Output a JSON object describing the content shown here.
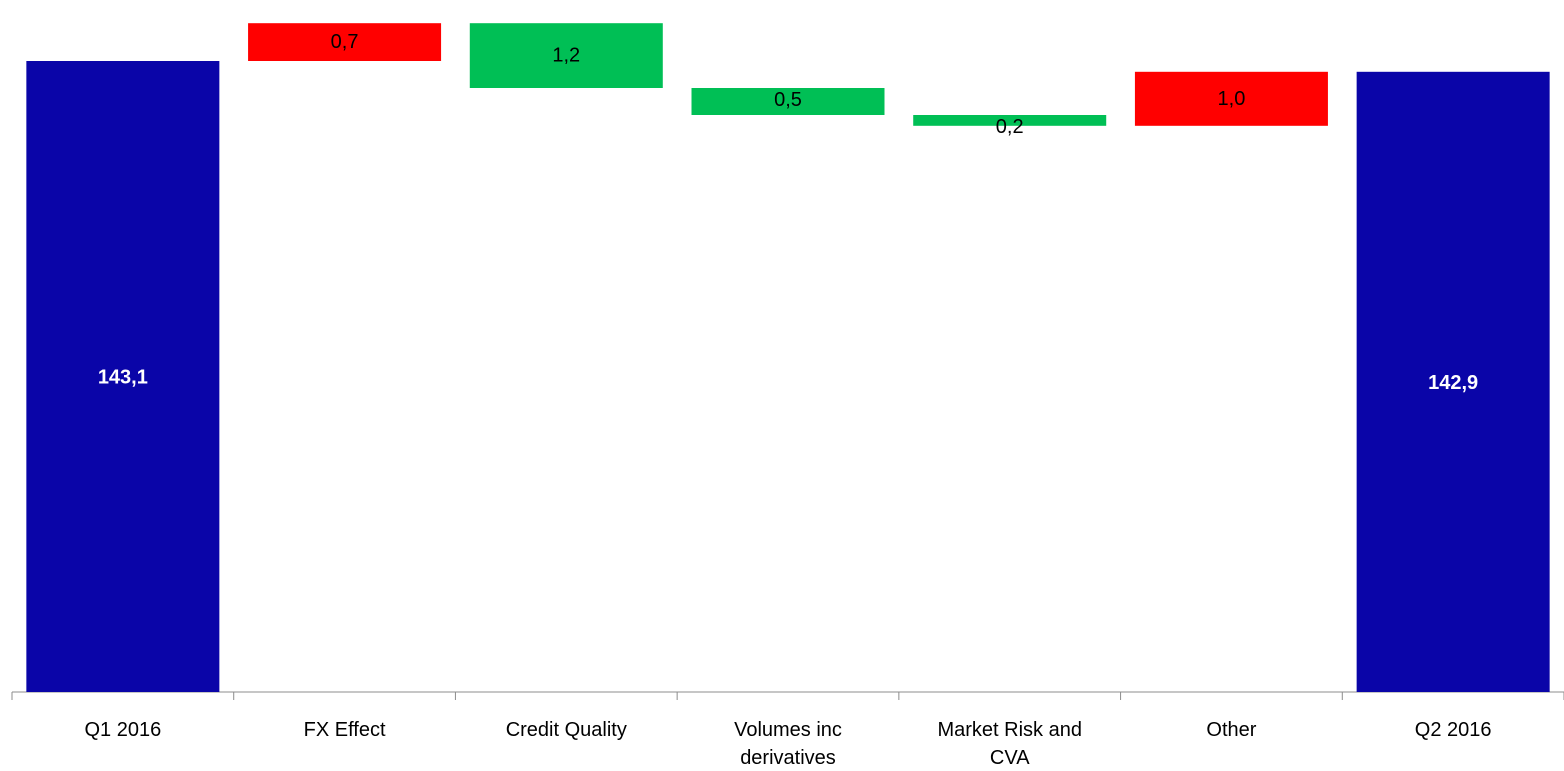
{
  "chart_data": {
    "type": "bar",
    "subtype": "waterfall",
    "categories": [
      "Q1 2016",
      "FX Effect",
      "Credit Quality",
      "Volumes inc derivatives",
      "Market Risk and CVA",
      "Other",
      "Q2 2016"
    ],
    "category_lines": [
      [
        "Q1 2016"
      ],
      [
        "FX Effect"
      ],
      [
        "Credit Quality"
      ],
      [
        "Volumes inc",
        "derivatives"
      ],
      [
        "Market Risk and",
        "CVA"
      ],
      [
        "Other"
      ],
      [
        "Q2 2016"
      ]
    ],
    "bars": [
      {
        "category": "Q1 2016",
        "kind": "total",
        "base": 0,
        "value": 143.1,
        "label": "143,1"
      },
      {
        "category": "FX Effect",
        "kind": "increase",
        "base": 143.1,
        "value": 0.7,
        "label": "0,7"
      },
      {
        "category": "Credit Quality",
        "kind": "decrease",
        "base": 143.8,
        "value": -1.2,
        "label": "1,2"
      },
      {
        "category": "Volumes inc derivatives",
        "kind": "decrease",
        "base": 142.6,
        "value": -0.5,
        "label": "0,5"
      },
      {
        "category": "Market Risk and CVA",
        "kind": "decrease",
        "base": 142.1,
        "value": -0.2,
        "label": "0,2"
      },
      {
        "category": "Other",
        "kind": "increase",
        "base": 141.9,
        "value": 1.0,
        "label": "1,0"
      },
      {
        "category": "Q2 2016",
        "kind": "total",
        "base": 0,
        "value": 142.9,
        "label": "142,9"
      }
    ],
    "colors": {
      "total": "#0a05a8",
      "increase": "#ff0000",
      "decrease": "#00bf55",
      "axis": "#8c8c8c"
    },
    "title": "",
    "xlabel": "",
    "ylabel": "",
    "grid": false,
    "legend": "none"
  }
}
